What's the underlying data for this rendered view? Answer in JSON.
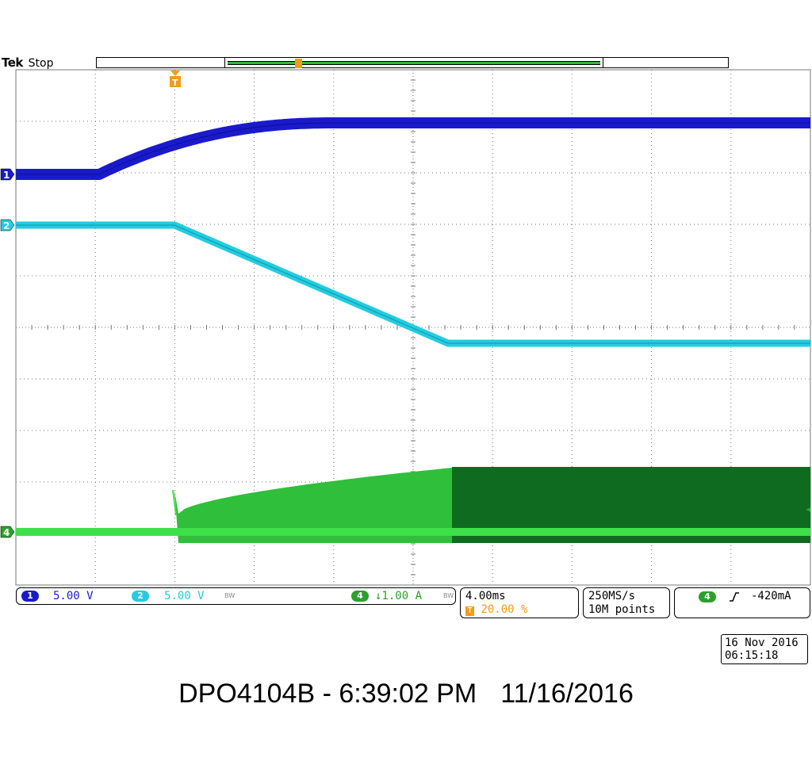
{
  "header": {
    "brand": "Tek",
    "state": "Stop"
  },
  "channels": {
    "ch1": {
      "badge": "1",
      "scale": "5.00 V",
      "color": "#1a1acc"
    },
    "ch2": {
      "badge": "2",
      "scale": "5.00 V",
      "bw": "BW",
      "color": "#22cce0"
    },
    "ch4": {
      "badge": "4",
      "scale": "↓1.00 A",
      "bw": "BW",
      "color": "#2ca02c"
    }
  },
  "markers": {
    "ch1": "1",
    "ch2": "2",
    "ch4": "4",
    "trigger": "T"
  },
  "timebase": {
    "scale": "4.00ms",
    "trigger_position": "20.00 %",
    "trigger_glyph": "T"
  },
  "acquisition": {
    "rate": "250MS/s",
    "points": "10M points"
  },
  "trigger": {
    "channel": "4",
    "slope_icon": "rising-edge-icon",
    "level": "-420mA"
  },
  "timestamp": {
    "date": "16 Nov 2016",
    "time": "06:15:18"
  },
  "caption": {
    "instrument": "DPO4104B - 6:39:02 PM",
    "date": "11/16/2016"
  },
  "colors": {
    "ch1": "#1a1acc",
    "ch2": "#22cce0",
    "ch4": "#2ca02c",
    "ch4_dark": "#0f6b1f",
    "trigger": "#f39c12",
    "grid": "#777777"
  }
}
